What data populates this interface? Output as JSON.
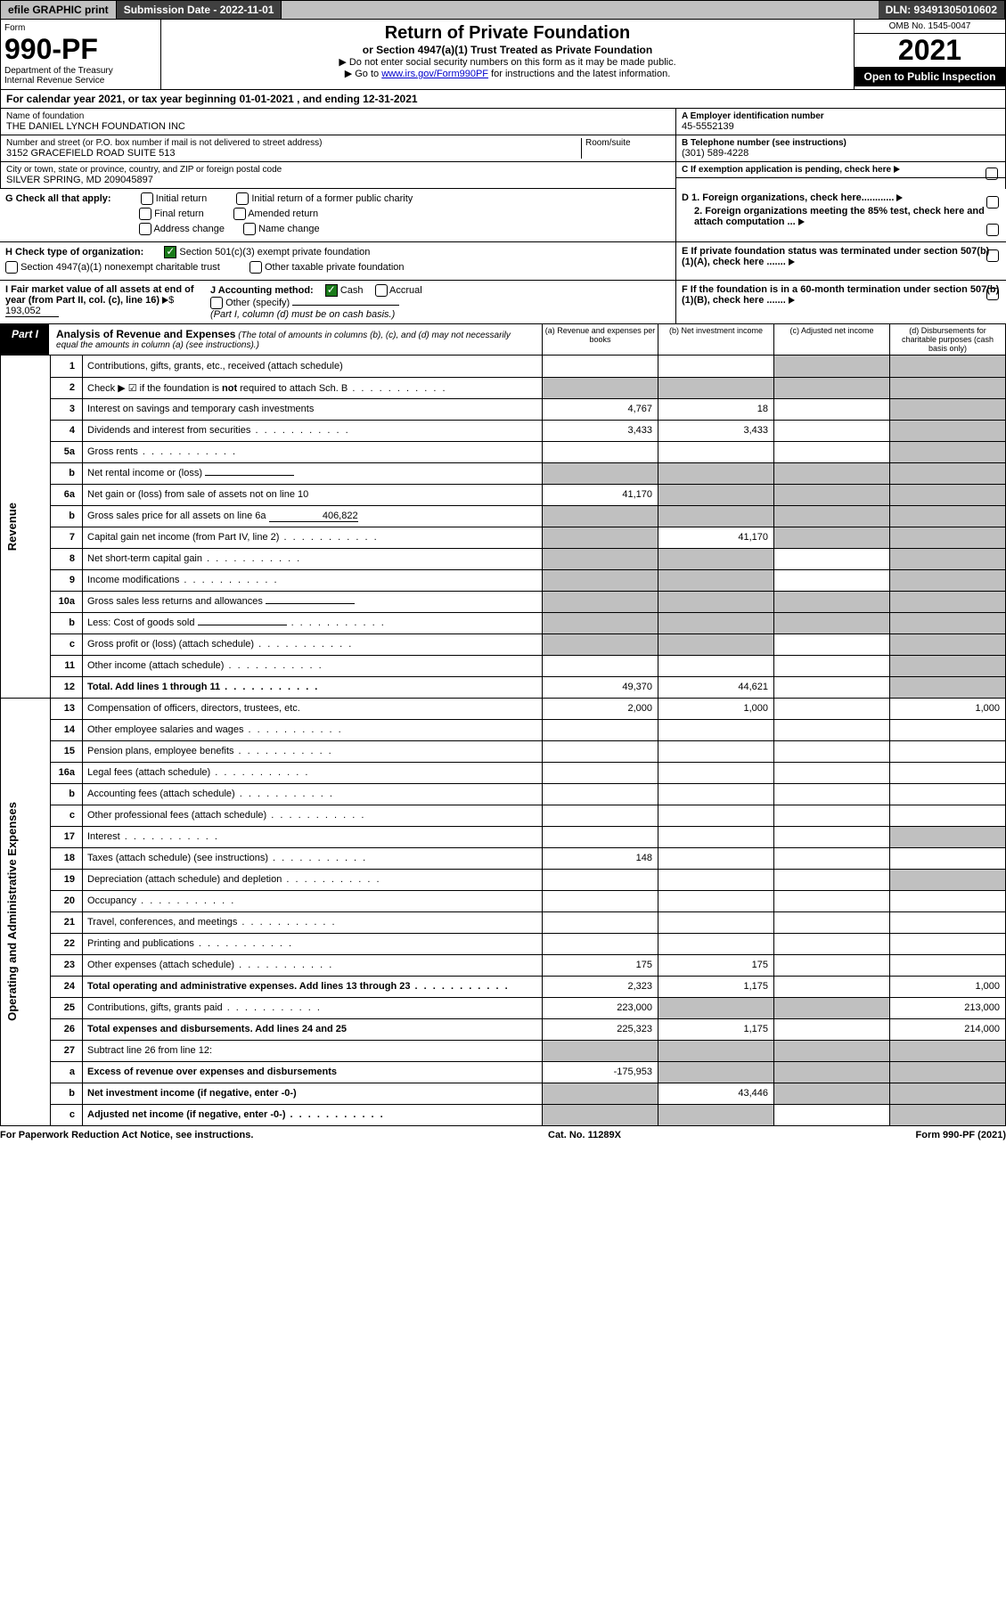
{
  "topbar": {
    "efile": "efile GRAPHIC print",
    "submission": "Submission Date - 2022-11-01",
    "dln": "DLN: 93491305010602"
  },
  "header": {
    "form_label": "Form",
    "form_number": "990-PF",
    "dept": "Department of the Treasury\nInternal Revenue Service",
    "title": "Return of Private Foundation",
    "subtitle": "or Section 4947(a)(1) Trust Treated as Private Foundation",
    "instr1": "▶ Do not enter social security numbers on this form as it may be made public.",
    "instr2_pre": "▶ Go to ",
    "instr2_link": "www.irs.gov/Form990PF",
    "instr2_post": " for instructions and the latest information.",
    "omb": "OMB No. 1545-0047",
    "year": "2021",
    "inspect": "Open to Public Inspection"
  },
  "cal": "For calendar year 2021, or tax year beginning 01-01-2021            , and ending 12-31-2021",
  "entity": {
    "name_label": "Name of foundation",
    "name": "THE DANIEL LYNCH FOUNDATION INC",
    "addr_label": "Number and street (or P.O. box number if mail is not delivered to street address)",
    "addr": "3152 GRACEFIELD ROAD SUITE 513",
    "room_label": "Room/suite",
    "city_label": "City or town, state or province, country, and ZIP or foreign postal code",
    "city": "SILVER SPRING, MD 209045897",
    "ein_label": "A Employer identification number",
    "ein": "45-5552139",
    "phone_label": "B Telephone number (see instructions)",
    "phone": "(301) 589-4228",
    "c_label": "C If exemption application is pending, check here"
  },
  "g": {
    "label": "G Check all that apply:",
    "opts": [
      "Initial return",
      "Initial return of a former public charity",
      "Final return",
      "Amended return",
      "Address change",
      "Name change"
    ]
  },
  "d": {
    "d1": "D 1. Foreign organizations, check here............",
    "d2": "2. Foreign organizations meeting the 85% test, check here and attach computation ..."
  },
  "h": {
    "label": "H Check type of organization:",
    "opt1": "Section 501(c)(3) exempt private foundation",
    "opt2": "Section 4947(a)(1) nonexempt charitable trust",
    "opt3": "Other taxable private foundation"
  },
  "e": "E If private foundation status was terminated under section 507(b)(1)(A), check here .......",
  "i": {
    "label": "I Fair market value of all assets at end of year (from Part II, col. (c), line 16)",
    "value": "193,052"
  },
  "j": {
    "label": "J Accounting method:",
    "cash": "Cash",
    "accrual": "Accrual",
    "other": "Other (specify)",
    "note": "(Part I, column (d) must be on cash basis.)"
  },
  "f": "F If the foundation is in a 60-month termination under section 507(b)(1)(B), check here .......",
  "part1": {
    "label": "Part I",
    "title": "Analysis of Revenue and Expenses",
    "note": "(The total of amounts in columns (b), (c), and (d) may not necessarily equal the amounts in column (a) (see instructions).)",
    "cols": [
      "(a) Revenue and expenses per books",
      "(b) Net investment income",
      "(c) Adjusted net income",
      "(d) Disbursements for charitable purposes (cash basis only)"
    ]
  },
  "sides": {
    "rev": "Revenue",
    "exp": "Operating and Administrative Expenses"
  },
  "rows": [
    {
      "n": "1",
      "t": "Contributions, gifts, grants, etc., received (attach schedule)",
      "a": "",
      "b": "",
      "c": "g",
      "d": "g"
    },
    {
      "n": "2",
      "t": "Check ▶ ☑ if the foundation is not required to attach Sch. B",
      "dots": true,
      "a": "g",
      "b": "g",
      "c": "g",
      "d": "g",
      "bold_not": true
    },
    {
      "n": "3",
      "t": "Interest on savings and temporary cash investments",
      "a": "4,767",
      "b": "18",
      "c": "",
      "d": "g"
    },
    {
      "n": "4",
      "t": "Dividends and interest from securities",
      "dots": true,
      "a": "3,433",
      "b": "3,433",
      "c": "",
      "d": "g"
    },
    {
      "n": "5a",
      "t": "Gross rents",
      "dots": true,
      "a": "",
      "b": "",
      "c": "",
      "d": "g"
    },
    {
      "n": "b",
      "t": "Net rental income or (loss)",
      "a": "g",
      "b": "g",
      "c": "g",
      "d": "g",
      "uline": true
    },
    {
      "n": "6a",
      "t": "Net gain or (loss) from sale of assets not on line 10",
      "a": "41,170",
      "b": "g",
      "c": "g",
      "d": "g"
    },
    {
      "n": "b",
      "t": "Gross sales price for all assets on line 6a",
      "a": "g",
      "b": "g",
      "c": "g",
      "d": "g",
      "inline_val": "406,822"
    },
    {
      "n": "7",
      "t": "Capital gain net income (from Part IV, line 2)",
      "dots": true,
      "a": "g",
      "b": "41,170",
      "c": "g",
      "d": "g"
    },
    {
      "n": "8",
      "t": "Net short-term capital gain",
      "dots": true,
      "a": "g",
      "b": "g",
      "c": "",
      "d": "g"
    },
    {
      "n": "9",
      "t": "Income modifications",
      "dots": true,
      "a": "g",
      "b": "g",
      "c": "",
      "d": "g"
    },
    {
      "n": "10a",
      "t": "Gross sales less returns and allowances",
      "a": "g",
      "b": "g",
      "c": "g",
      "d": "g",
      "uline": true
    },
    {
      "n": "b",
      "t": "Less: Cost of goods sold",
      "dots": true,
      "a": "g",
      "b": "g",
      "c": "g",
      "d": "g",
      "uline": true
    },
    {
      "n": "c",
      "t": "Gross profit or (loss) (attach schedule)",
      "dots": true,
      "a": "g",
      "b": "g",
      "c": "",
      "d": "g"
    },
    {
      "n": "11",
      "t": "Other income (attach schedule)",
      "dots": true,
      "a": "",
      "b": "",
      "c": "",
      "d": "g"
    },
    {
      "n": "12",
      "t": "Total. Add lines 1 through 11",
      "dots": true,
      "bold": true,
      "a": "49,370",
      "b": "44,621",
      "c": "",
      "d": "g"
    },
    {
      "n": "13",
      "t": "Compensation of officers, directors, trustees, etc.",
      "a": "2,000",
      "b": "1,000",
      "c": "",
      "d": "1,000"
    },
    {
      "n": "14",
      "t": "Other employee salaries and wages",
      "dots": true,
      "a": "",
      "b": "",
      "c": "",
      "d": ""
    },
    {
      "n": "15",
      "t": "Pension plans, employee benefits",
      "dots": true,
      "a": "",
      "b": "",
      "c": "",
      "d": ""
    },
    {
      "n": "16a",
      "t": "Legal fees (attach schedule)",
      "dots": true,
      "a": "",
      "b": "",
      "c": "",
      "d": ""
    },
    {
      "n": "b",
      "t": "Accounting fees (attach schedule)",
      "dots": true,
      "a": "",
      "b": "",
      "c": "",
      "d": ""
    },
    {
      "n": "c",
      "t": "Other professional fees (attach schedule)",
      "dots": true,
      "a": "",
      "b": "",
      "c": "",
      "d": ""
    },
    {
      "n": "17",
      "t": "Interest",
      "dots": true,
      "a": "",
      "b": "",
      "c": "",
      "d": "g"
    },
    {
      "n": "18",
      "t": "Taxes (attach schedule) (see instructions)",
      "dots": true,
      "a": "148",
      "b": "",
      "c": "",
      "d": ""
    },
    {
      "n": "19",
      "t": "Depreciation (attach schedule) and depletion",
      "dots": true,
      "a": "",
      "b": "",
      "c": "",
      "d": "g"
    },
    {
      "n": "20",
      "t": "Occupancy",
      "dots": true,
      "a": "",
      "b": "",
      "c": "",
      "d": ""
    },
    {
      "n": "21",
      "t": "Travel, conferences, and meetings",
      "dots": true,
      "a": "",
      "b": "",
      "c": "",
      "d": ""
    },
    {
      "n": "22",
      "t": "Printing and publications",
      "dots": true,
      "a": "",
      "b": "",
      "c": "",
      "d": ""
    },
    {
      "n": "23",
      "t": "Other expenses (attach schedule)",
      "dots": true,
      "a": "175",
      "b": "175",
      "c": "",
      "d": ""
    },
    {
      "n": "24",
      "t": "Total operating and administrative expenses. Add lines 13 through 23",
      "dots": true,
      "bold": true,
      "a": "2,323",
      "b": "1,175",
      "c": "",
      "d": "1,000"
    },
    {
      "n": "25",
      "t": "Contributions, gifts, grants paid",
      "dots": true,
      "a": "223,000",
      "b": "g",
      "c": "g",
      "d": "213,000"
    },
    {
      "n": "26",
      "t": "Total expenses and disbursements. Add lines 24 and 25",
      "bold": true,
      "a": "225,323",
      "b": "1,175",
      "c": "",
      "d": "214,000"
    },
    {
      "n": "27",
      "t": "Subtract line 26 from line 12:",
      "a": "g",
      "b": "g",
      "c": "g",
      "d": "g"
    },
    {
      "n": "a",
      "t": "Excess of revenue over expenses and disbursements",
      "bold": true,
      "a": "-175,953",
      "b": "g",
      "c": "g",
      "d": "g"
    },
    {
      "n": "b",
      "t": "Net investment income (if negative, enter -0-)",
      "bold": true,
      "a": "g",
      "b": "43,446",
      "c": "g",
      "d": "g"
    },
    {
      "n": "c",
      "t": "Adjusted net income (if negative, enter -0-)",
      "dots": true,
      "bold": true,
      "a": "g",
      "b": "g",
      "c": "",
      "d": "g"
    }
  ],
  "footer": {
    "left": "For Paperwork Reduction Act Notice, see instructions.",
    "mid": "Cat. No. 11289X",
    "right": "Form 990-PF (2021)"
  }
}
